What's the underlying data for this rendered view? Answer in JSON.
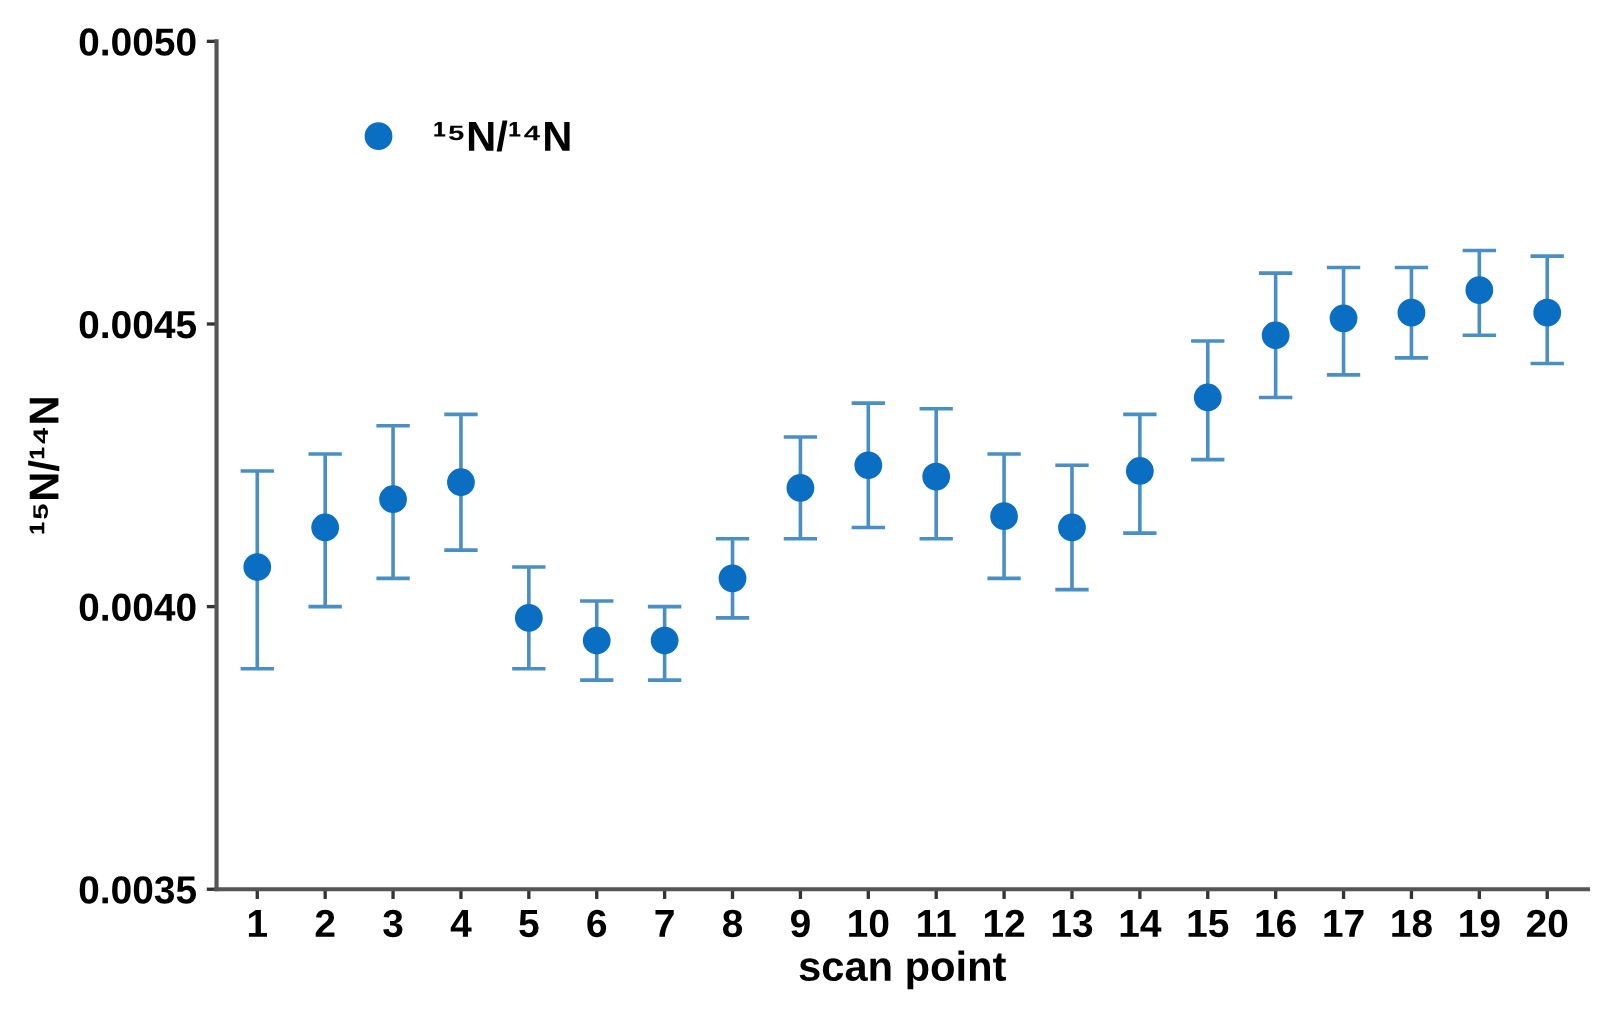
{
  "chart_data": {
    "type": "scatter",
    "xlabel": "scan point",
    "ylabel": "¹⁵N/¹⁴N",
    "categories": [
      "1",
      "2",
      "3",
      "4",
      "5",
      "6",
      "7",
      "8",
      "9",
      "10",
      "11",
      "12",
      "13",
      "14",
      "15",
      "16",
      "17",
      "18",
      "19",
      "20"
    ],
    "series": [
      {
        "name": "¹⁵N/¹⁴N",
        "color": "#0a6fc2",
        "values": [
          0.00407,
          0.00414,
          0.00419,
          0.00422,
          0.00398,
          0.00394,
          0.00394,
          0.00405,
          0.00421,
          0.00425,
          0.00423,
          0.00416,
          0.00414,
          0.00424,
          0.00437,
          0.00448,
          0.00451,
          0.00452,
          0.00456,
          0.00452
        ],
        "errors": [
          [
            0.00389,
            0.00424
          ],
          [
            0.004,
            0.00427
          ],
          [
            0.00405,
            0.00432
          ],
          [
            0.0041,
            0.00434
          ],
          [
            0.00389,
            0.00407
          ],
          [
            0.00387,
            0.00401
          ],
          [
            0.00387,
            0.004
          ],
          [
            0.00398,
            0.00412
          ],
          [
            0.00412,
            0.0043
          ],
          [
            0.00414,
            0.00436
          ],
          [
            0.00412,
            0.00435
          ],
          [
            0.00405,
            0.00427
          ],
          [
            0.00403,
            0.00425
          ],
          [
            0.00413,
            0.00434
          ],
          [
            0.00426,
            0.00447
          ],
          [
            0.00437,
            0.00459
          ],
          [
            0.00441,
            0.0046
          ],
          [
            0.00444,
            0.0046
          ],
          [
            0.00448,
            0.00463
          ],
          [
            0.00443,
            0.00462
          ]
        ]
      }
    ],
    "ylim": [
      0.0035,
      0.005
    ],
    "yticks": [
      {
        "value": 0.0035,
        "label": "0.0035"
      },
      {
        "value": 0.004,
        "label": "0.0040"
      },
      {
        "value": 0.0045,
        "label": "0.0045"
      },
      {
        "value": 0.005,
        "label": "0.0050"
      }
    ],
    "marker": "circle",
    "grid": false,
    "legend": "top left"
  }
}
